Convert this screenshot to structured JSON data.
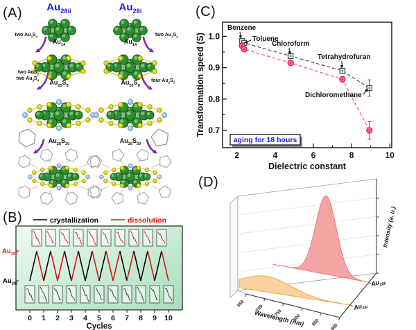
{
  "figure": {
    "panel_a": {
      "tag": "(A)",
      "left_header": "Au~28ii~",
      "right_header": "Au~28i~",
      "header_color": "#2222dd",
      "arrow_color": "#7a2ea0",
      "labels": {
        "au14": "Au~14~",
        "au20s8": "Au~20~S~8~",
        "au28s20": "Au~28~S~20~"
      },
      "left_arrow1": "two Au~3~S~4~",
      "right_arrow1": "two Au~3~S~4~",
      "left_arrow2a": "two AuS~2~",
      "left_arrow2b": "two Au~3~S~4~",
      "right_arrow2": "four Au~2~S~3~",
      "left_solvent_shape": "benzene-hexagon",
      "right_solvent_shape": "cyclopentane-pentagon"
    },
    "panel_b": {
      "tag": "(B)"
    },
    "panel_c": {
      "tag": "(C)"
    },
    "panel_d": {
      "tag": "(D)"
    }
  },
  "chart_data": [
    {
      "panel": "B",
      "type": "line",
      "xlabel": "Cycles",
      "xticks": [
        0,
        1,
        2,
        3,
        4,
        5,
        6,
        7,
        8,
        9,
        10
      ],
      "cycles": 10,
      "states": [
        {
          "text": "Au~28i~",
          "color": "#000000",
          "level": "low"
        },
        {
          "text": "Au~28ii~",
          "color": "#e01010",
          "level": "high"
        }
      ],
      "legend": [
        {
          "label": "crystallization",
          "color": "#000000"
        },
        {
          "label": "dissolution",
          "color": "#e01010"
        }
      ],
      "transitions": [
        {
          "up": "crystallization",
          "down": "dissolution"
        },
        {
          "up": "crystallization",
          "down": "dissolution"
        },
        {
          "up": "dissolution",
          "down": "crystallization"
        },
        {
          "up": "dissolution",
          "down": "crystallization"
        },
        {
          "up": "crystallization",
          "down": "dissolution"
        },
        {
          "up": "crystallization",
          "down": "dissolution"
        },
        {
          "up": "dissolution",
          "down": "crystallization"
        },
        {
          "up": "dissolution",
          "down": "crystallization"
        },
        {
          "up": "crystallization",
          "down": "dissolution"
        },
        {
          "up": "crystallization",
          "down": "dissolution"
        }
      ],
      "top_insets": {
        "count": 10,
        "trace_color": "#e01010"
      },
      "bottom_insets": {
        "count": 11,
        "trace_color": "#333333"
      },
      "background_gradient": [
        "#eefaf2",
        "#a8dfbb"
      ]
    },
    {
      "panel": "C",
      "type": "scatter",
      "xlabel": "Dielectric constant",
      "ylabel": "Transformation speed (S)",
      "xticks": [
        2,
        4,
        6,
        8,
        10
      ],
      "yticks": [
        0.7,
        0.8,
        0.9,
        1.0
      ],
      "xminor": [
        3,
        5,
        7,
        9
      ],
      "yminor": [
        0.75,
        0.85,
        0.95
      ],
      "xlim": [
        1.25,
        10.1
      ],
      "ylim": [
        0.645,
        1.045
      ],
      "series": [
        {
          "name": "Au28ii",
          "marker": "square",
          "color": "#4d4d4d",
          "fill": "#ededed",
          "line": "dashed",
          "points": [
            {
              "x": 2.27,
              "y": 0.985,
              "err": 0.006,
              "label": "Benzene"
            },
            {
              "x": 2.38,
              "y": 0.979,
              "err": 0.006,
              "label": "Toluene"
            },
            {
              "x": 4.81,
              "y": 0.937,
              "err": 0.005,
              "label": "Chloroform"
            },
            {
              "x": 7.52,
              "y": 0.89,
              "err": 0.008,
              "label": "Tetrahydrofuran"
            },
            {
              "x": 8.93,
              "y": 0.835,
              "err": 0.026,
              "label": "Dichloromethane"
            }
          ]
        },
        {
          "name": "Au28i",
          "marker": "circle",
          "color": "#d6195c",
          "fill": "#ff63a8",
          "line": "dashed",
          "line_color": "#ff5a5a",
          "points": [
            {
              "x": 2.27,
              "y": 0.97,
              "err": 0.006
            },
            {
              "x": 2.38,
              "y": 0.959,
              "err": 0.006
            },
            {
              "x": 4.81,
              "y": 0.915,
              "err": 0.006
            },
            {
              "x": 7.52,
              "y": 0.863,
              "err": 0.009
            },
            {
              "x": 8.93,
              "y": 0.7,
              "err": 0.028
            }
          ]
        }
      ],
      "note": "aging for 18 hours",
      "note_color": "#1a1ae0"
    },
    {
      "panel": "D",
      "type": "area",
      "projection": "3d-waterfall",
      "xlabel": "Wavelength (nm)",
      "zlabel": "Intensity (a. u.)",
      "xticks": [
        650,
        700,
        750,
        800,
        850,
        900
      ],
      "xrange": [
        650,
        900
      ],
      "series": [
        {
          "name": "Au~28ii~",
          "row": "back",
          "color": "#f49c9c",
          "edge": "#ee7f7f",
          "peak_nm": 790,
          "sigma_nm": 27,
          "rel_intensity": 1.0
        },
        {
          "name": "Au~28i~",
          "row": "front",
          "color": "#f9cf97",
          "edge": "#f0a74e",
          "peak_nm": 712,
          "sigma_nm": 55,
          "rel_intensity": 0.2
        }
      ]
    }
  ]
}
